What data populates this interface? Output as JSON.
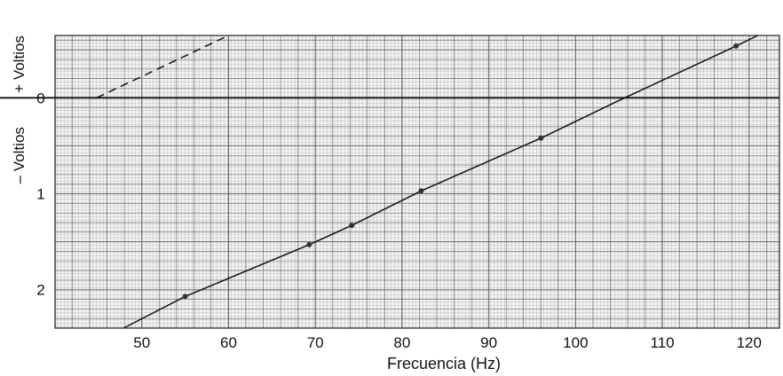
{
  "chart_data": {
    "type": "line",
    "xlabel": "Frecuencia (Hz)",
    "ylabel_positive": "+ Voltios",
    "ylabel_negative": "– Voltios",
    "x_ticks": [
      50,
      60,
      70,
      80,
      90,
      100,
      110,
      120
    ],
    "y_ticks": [
      0,
      1,
      2
    ],
    "xlim": [
      40,
      123.5
    ],
    "ylim": [
      -0.65,
      2.4
    ],
    "y_axis_inverted": true,
    "grid": true,
    "series": [
      {
        "style": "solid",
        "points": [
          {
            "x": 47.9,
            "y": 2.4
          },
          {
            "x": 55.0,
            "y": 2.07
          },
          {
            "x": 69.3,
            "y": 1.53
          },
          {
            "x": 74.2,
            "y": 1.33
          },
          {
            "x": 82.2,
            "y": 0.97
          },
          {
            "x": 96.0,
            "y": 0.42
          },
          {
            "x": 104.5,
            "y": 0.05
          },
          {
            "x": 118.5,
            "y": -0.54
          },
          {
            "x": 121.0,
            "y": -0.65
          }
        ],
        "markers": [
          {
            "x": 55.0,
            "y": 2.07
          },
          {
            "x": 69.3,
            "y": 1.53
          },
          {
            "x": 74.2,
            "y": 1.33
          },
          {
            "x": 82.2,
            "y": 0.97
          },
          {
            "x": 96.0,
            "y": 0.42
          },
          {
            "x": 118.5,
            "y": -0.54
          }
        ]
      },
      {
        "style": "dashed",
        "points": [
          {
            "x": 44.8,
            "y": 0.0
          },
          {
            "x": 60.0,
            "y": -0.65
          }
        ]
      }
    ],
    "zero_line": 0
  }
}
